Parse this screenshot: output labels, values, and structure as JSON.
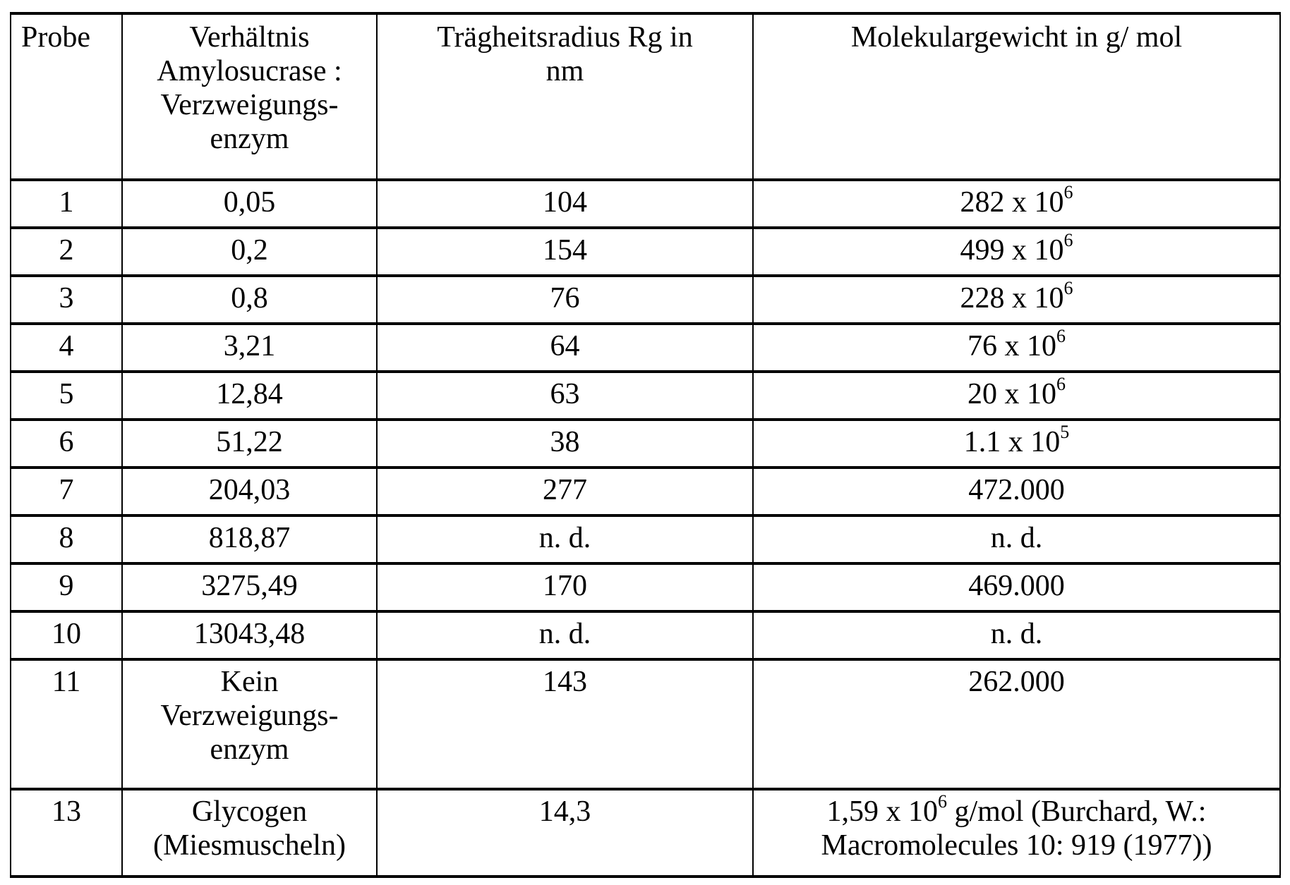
{
  "table": {
    "headers": {
      "probe": "Probe",
      "ratio": [
        "Verhältnis",
        "Amylosucrase :",
        "Verzweigungs-",
        "enzym"
      ],
      "rg": [
        "Trägheitsradius Rg in",
        "nm"
      ],
      "mw": "Molekulargewicht in g/ mol"
    },
    "rows": [
      {
        "probe": "1",
        "ratio": "0,05",
        "rg": "104",
        "mw_base": "282 x 10",
        "mw_exp": "6",
        "mw_suffix": ""
      },
      {
        "probe": "2",
        "ratio": "0,2",
        "rg": "154",
        "mw_base": "499 x 10",
        "mw_exp": "6",
        "mw_suffix": ""
      },
      {
        "probe": "3",
        "ratio": "0,8",
        "rg": "76",
        "mw_base": "228 x 10",
        "mw_exp": "6",
        "mw_suffix": ""
      },
      {
        "probe": "4",
        "ratio": "3,21",
        "rg": "64",
        "mw_base": "76 x 10",
        "mw_exp": "6",
        "mw_suffix": ""
      },
      {
        "probe": "5",
        "ratio": "12,84",
        "rg": "63",
        "mw_base": "20 x 10",
        "mw_exp": "6",
        "mw_suffix": ""
      },
      {
        "probe": "6",
        "ratio": "51,22",
        "rg": "38",
        "mw_base": "1.1 x 10",
        "mw_exp": "5",
        "mw_suffix": ""
      },
      {
        "probe": "7",
        "ratio": "204,03",
        "rg": "277",
        "mw_base": "472.000",
        "mw_exp": "",
        "mw_suffix": ""
      },
      {
        "probe": "8",
        "ratio": "818,87",
        "rg": "n. d.",
        "mw_base": "n. d.",
        "mw_exp": "",
        "mw_suffix": ""
      },
      {
        "probe": "9",
        "ratio": "3275,49",
        "rg": "170",
        "mw_base": "469.000",
        "mw_exp": "",
        "mw_suffix": ""
      },
      {
        "probe": "10",
        "ratio": "13043,48",
        "rg": "n. d.",
        "mw_base": "n. d.",
        "mw_exp": "",
        "mw_suffix": ""
      }
    ],
    "row11": {
      "probe": "11",
      "ratio": [
        "Kein",
        "Verzweigungs-",
        "enzym"
      ],
      "rg": "143",
      "mw": "262.000"
    },
    "row13": {
      "probe": "13",
      "ratio": [
        "Glycogen",
        "(Miesmuscheln)"
      ],
      "rg": "14,3",
      "mw_base": "1,59 x 10",
      "mw_exp": "6",
      "mw_suffix": " g/mol (Burchard, W.:",
      "mw_line2": "Macromolecules 10: 919 (1977))"
    }
  }
}
